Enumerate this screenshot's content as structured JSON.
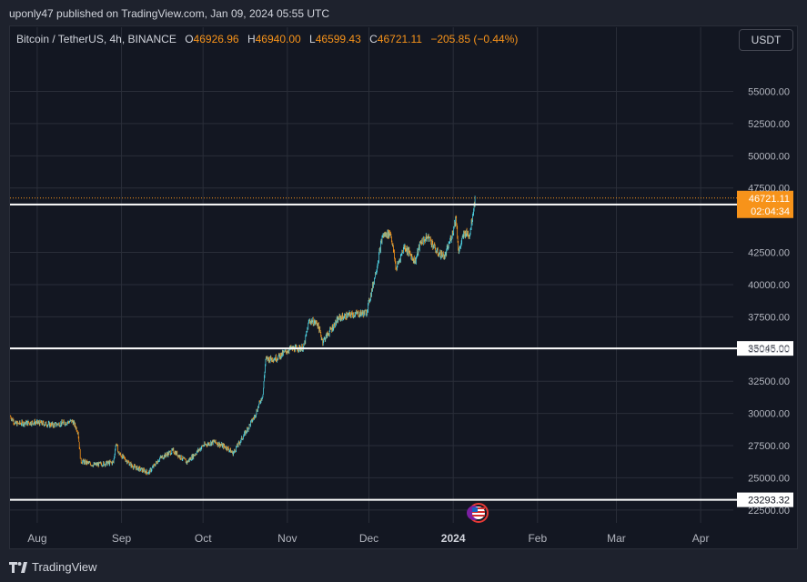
{
  "header": {
    "published": "uponly47 published on TradingView.com, Jan 09, 2024 05:55 UTC"
  },
  "legend": {
    "symbol": "Bitcoin / TetherUS, 4h, BINANCE",
    "o_label": "O",
    "o": "46926.96",
    "h_label": "H",
    "h": "46940.00",
    "l_label": "L",
    "l": "46599.43",
    "c_label": "C",
    "c": "46721.11",
    "change": "−205.85 (−0.44%)"
  },
  "toolbar": {
    "currency": "USDT"
  },
  "footer": {
    "brand": "TradingView"
  },
  "colors": {
    "up": "#26a69a",
    "down": "#f7931a",
    "up_wick": "#4dd0e1",
    "background": "#131722",
    "grid": "#2a2e39"
  },
  "chart_data": {
    "type": "candlestick",
    "symbol": "Bitcoin / TetherUS",
    "interval": "4h",
    "exchange": "BINANCE",
    "ylim": [
      21500,
      58000
    ],
    "y_ticks": [
      "22500.00",
      "25000.00",
      "27500.00",
      "30000.00",
      "32500.00",
      "35000.00",
      "37500.00",
      "40000.00",
      "42500.00",
      "47500.00",
      "50000.00",
      "52500.00",
      "55000.00"
    ],
    "x_ticks": [
      {
        "label": "Aug",
        "date": "2023-08-01"
      },
      {
        "label": "Sep",
        "date": "2023-09-01"
      },
      {
        "label": "Oct",
        "date": "2023-10-01"
      },
      {
        "label": "Nov",
        "date": "2023-11-01"
      },
      {
        "label": "Dec",
        "date": "2023-12-01"
      },
      {
        "label": "2024",
        "date": "2024-01-01"
      },
      {
        "label": "Feb",
        "date": "2024-02-01"
      },
      {
        "label": "Mar",
        "date": "2024-03-01"
      },
      {
        "label": "Apr",
        "date": "2024-04-01"
      }
    ],
    "x_range": [
      "2023-07-22",
      "2024-04-13"
    ],
    "price_path": [
      {
        "date": "2023-07-22",
        "price": 29800
      },
      {
        "date": "2023-07-24",
        "price": 29200
      },
      {
        "date": "2023-07-31",
        "price": 29300
      },
      {
        "date": "2023-08-07",
        "price": 29100
      },
      {
        "date": "2023-08-14",
        "price": 29400
      },
      {
        "date": "2023-08-16",
        "price": 28600
      },
      {
        "date": "2023-08-17",
        "price": 26300
      },
      {
        "date": "2023-08-22",
        "price": 26000
      },
      {
        "date": "2023-08-29",
        "price": 26200
      },
      {
        "date": "2023-08-30",
        "price": 27700
      },
      {
        "date": "2023-08-31",
        "price": 26900
      },
      {
        "date": "2023-09-05",
        "price": 25900
      },
      {
        "date": "2023-09-11",
        "price": 25400
      },
      {
        "date": "2023-09-15",
        "price": 26500
      },
      {
        "date": "2023-09-20",
        "price": 27100
      },
      {
        "date": "2023-09-25",
        "price": 26200
      },
      {
        "date": "2023-10-01",
        "price": 27500
      },
      {
        "date": "2023-10-05",
        "price": 27800
      },
      {
        "date": "2023-10-10",
        "price": 27300
      },
      {
        "date": "2023-10-12",
        "price": 26900
      },
      {
        "date": "2023-10-16",
        "price": 28300
      },
      {
        "date": "2023-10-20",
        "price": 29800
      },
      {
        "date": "2023-10-23",
        "price": 31500
      },
      {
        "date": "2023-10-24",
        "price": 34200
      },
      {
        "date": "2023-10-28",
        "price": 34300
      },
      {
        "date": "2023-11-02",
        "price": 35000
      },
      {
        "date": "2023-11-07",
        "price": 35100
      },
      {
        "date": "2023-11-09",
        "price": 37200
      },
      {
        "date": "2023-11-12",
        "price": 37000
      },
      {
        "date": "2023-11-14",
        "price": 35600
      },
      {
        "date": "2023-11-17",
        "price": 36500
      },
      {
        "date": "2023-11-20",
        "price": 37400
      },
      {
        "date": "2023-11-25",
        "price": 37700
      },
      {
        "date": "2023-11-30",
        "price": 37800
      },
      {
        "date": "2023-12-02",
        "price": 39500
      },
      {
        "date": "2023-12-04",
        "price": 41500
      },
      {
        "date": "2023-12-06",
        "price": 43800
      },
      {
        "date": "2023-12-09",
        "price": 44000
      },
      {
        "date": "2023-12-11",
        "price": 41200
      },
      {
        "date": "2023-12-14",
        "price": 43000
      },
      {
        "date": "2023-12-18",
        "price": 41800
      },
      {
        "date": "2023-12-20",
        "price": 43300
      },
      {
        "date": "2023-12-23",
        "price": 43700
      },
      {
        "date": "2023-12-26",
        "price": 42500
      },
      {
        "date": "2023-12-29",
        "price": 42200
      },
      {
        "date": "2024-01-01",
        "price": 44200
      },
      {
        "date": "2024-01-02",
        "price": 45300
      },
      {
        "date": "2024-01-03",
        "price": 42500
      },
      {
        "date": "2024-01-05",
        "price": 44000
      },
      {
        "date": "2024-01-07",
        "price": 43900
      },
      {
        "date": "2024-01-08",
        "price": 45200
      },
      {
        "date": "2024-01-09",
        "price": 46721
      }
    ],
    "levels": [
      {
        "value": 46216.93,
        "label": "46216.93",
        "style": "solid"
      },
      {
        "value": 35045.0,
        "label": "35045.00",
        "style": "solid"
      },
      {
        "value": 23293.32,
        "label": "23293.32",
        "style": "solid"
      }
    ],
    "last_price": {
      "value": 46721.11,
      "label": "46721.11",
      "countdown": "02:04:34"
    }
  }
}
